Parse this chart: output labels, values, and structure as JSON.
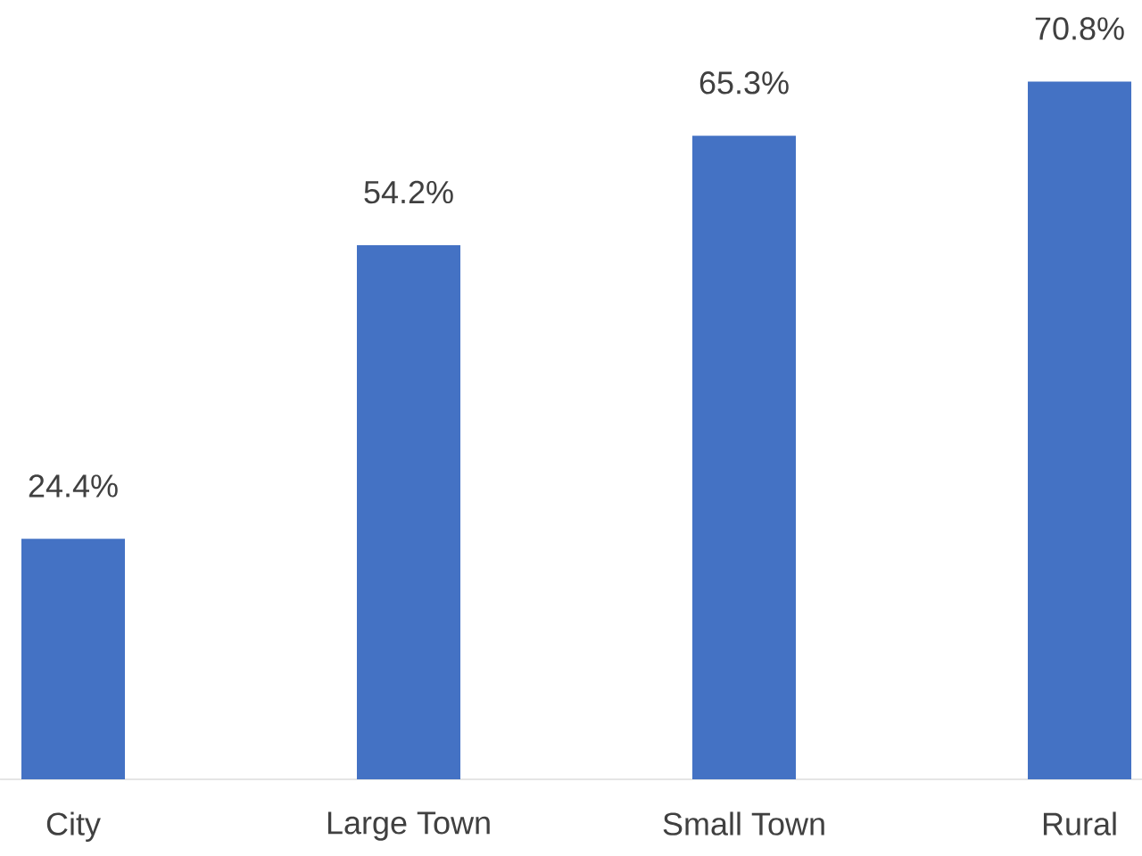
{
  "chart_data": {
    "type": "bar",
    "categories": [
      "City",
      "Large Town",
      "Small Town",
      "Rural"
    ],
    "values": [
      24.4,
      54.2,
      65.3,
      70.8
    ],
    "value_labels": [
      "24.4%",
      "54.2%",
      "65.3%",
      "70.8%"
    ],
    "color": "#4472c4"
  }
}
